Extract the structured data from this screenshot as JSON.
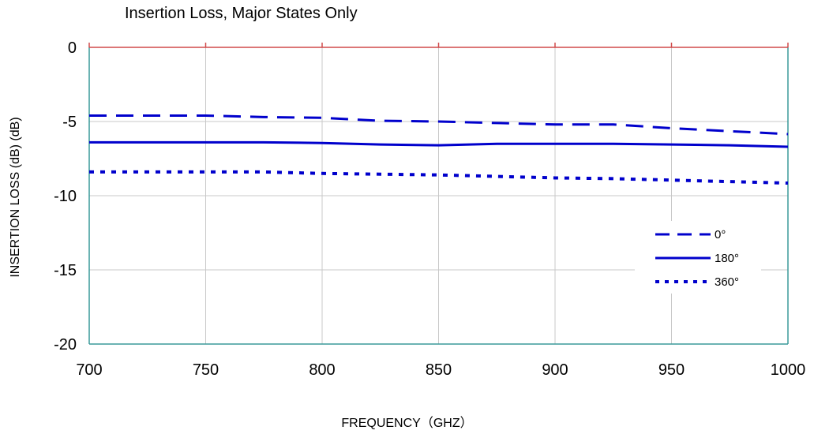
{
  "chart_data": {
    "type": "line",
    "title": "Insertion Loss, Major States Only",
    "xlabel": "FREQUENCY（GHZ）",
    "ylabel": "INSERTION LOSS (dB)  (dB)",
    "xlim": [
      700,
      1000
    ],
    "ylim": [
      -20,
      0
    ],
    "xticks": [
      700,
      750,
      800,
      850,
      900,
      950,
      1000
    ],
    "yticks": [
      0,
      -5,
      -10,
      -15,
      -20
    ],
    "grid": true,
    "legend_position": "right",
    "series": [
      {
        "name": "0°",
        "style": "dashed",
        "color": "#0000cc",
        "x": [
          700,
          750,
          775,
          800,
          825,
          850,
          875,
          900,
          925,
          950,
          975,
          1000
        ],
        "y": [
          -4.6,
          -4.6,
          -4.7,
          -4.75,
          -4.95,
          -5.0,
          -5.1,
          -5.2,
          -5.2,
          -5.45,
          -5.65,
          -5.85
        ]
      },
      {
        "name": "180°",
        "style": "solid",
        "color": "#0000cc",
        "x": [
          700,
          750,
          775,
          800,
          825,
          850,
          875,
          900,
          925,
          950,
          975,
          1000
        ],
        "y": [
          -6.4,
          -6.4,
          -6.4,
          -6.45,
          -6.55,
          -6.6,
          -6.5,
          -6.5,
          -6.5,
          -6.55,
          -6.6,
          -6.7
        ]
      },
      {
        "name": "360°",
        "style": "dotted",
        "color": "#0000cc",
        "x": [
          700,
          750,
          775,
          800,
          825,
          850,
          875,
          900,
          925,
          950,
          975,
          1000
        ],
        "y": [
          -8.4,
          -8.4,
          -8.4,
          -8.5,
          -8.55,
          -8.6,
          -8.7,
          -8.8,
          -8.85,
          -8.95,
          -9.05,
          -9.15
        ]
      }
    ]
  }
}
